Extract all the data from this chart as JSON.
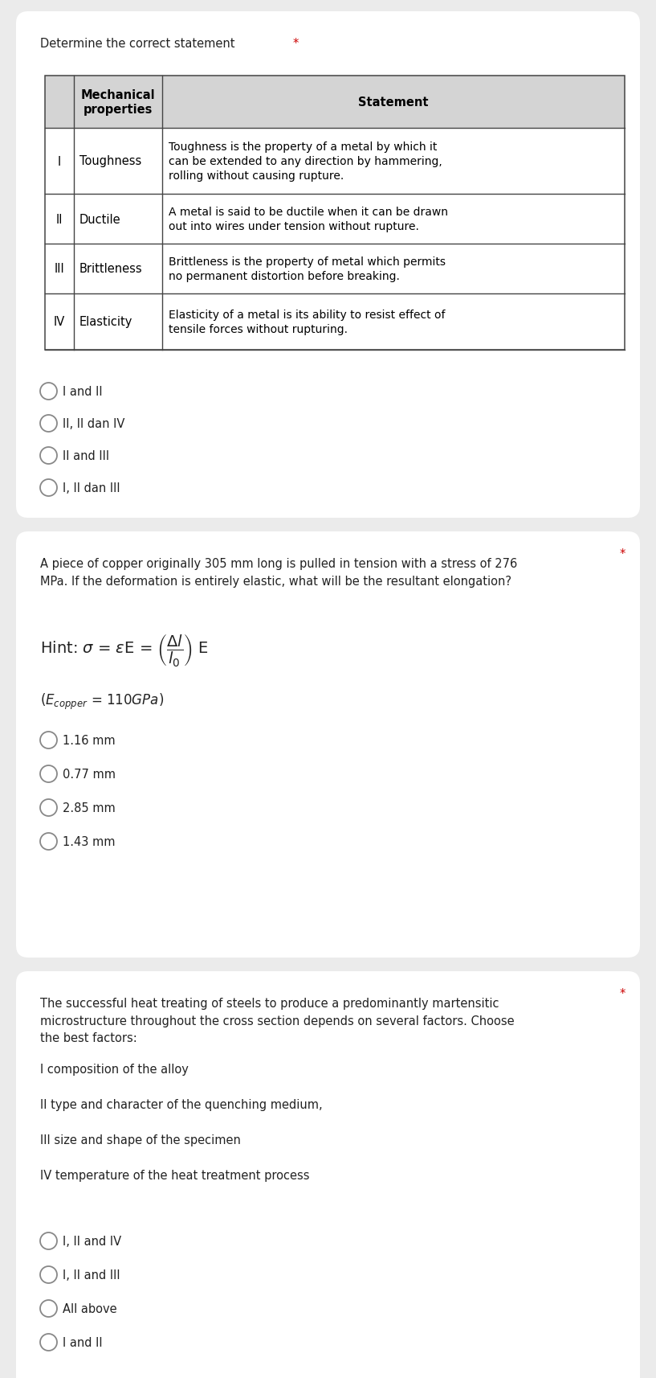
{
  "bg_color": "#ebebeb",
  "card_color": "#ffffff",
  "q1": {
    "title": "Determine the correct statement",
    "star": "*",
    "table": {
      "rows": [
        [
          "I",
          "Toughness",
          "Toughness is the property of a metal by which it\ncan be extended to any direction by hammering,\nrolling without causing rupture."
        ],
        [
          "II",
          "Ductile",
          "A metal is said to be ductile when it can be drawn\nout into wires under tension without rupture."
        ],
        [
          "III",
          "Brittleness",
          "Brittleness is the property of metal which permits\nno permanent distortion before breaking."
        ],
        [
          "IV",
          "Elasticity",
          "Elasticity of a metal is its ability to resist effect of\ntensile forces without rupturing."
        ]
      ],
      "header_bg": "#d4d4d4",
      "border_color": "#444444"
    },
    "options": [
      "I and II",
      "II, II dan IV",
      "II and III",
      "I, II dan III"
    ]
  },
  "q2": {
    "title": "A piece of copper originally 305 mm long is pulled in tension with a stress of 276\nMPa. If the deformation is entirely elastic, what will be the resultant elongation?",
    "star": "*",
    "options": [
      "1.16 mm",
      "0.77 mm",
      "2.85 mm",
      "1.43 mm"
    ]
  },
  "q3": {
    "title": "The successful heat treating of steels to produce a predominantly martensitic\nmicrostructure throughout the cross section depends on several factors. Choose\nthe best factors:",
    "star": "*",
    "items": [
      "I composition of the alloy",
      "II type and character of the quenching medium,",
      "III size and shape of the specimen",
      "IV temperature of the heat treatment process"
    ],
    "options": [
      "I, II and IV",
      "I, II and III",
      "All above",
      "I and II"
    ]
  },
  "font_size_body": 10.5,
  "font_size_option": 10.5,
  "font_size_table_body": 10.0,
  "font_size_table_header": 10.5,
  "text_color": "#222222",
  "star_color": "#cc0000",
  "radio_color": "#888888"
}
